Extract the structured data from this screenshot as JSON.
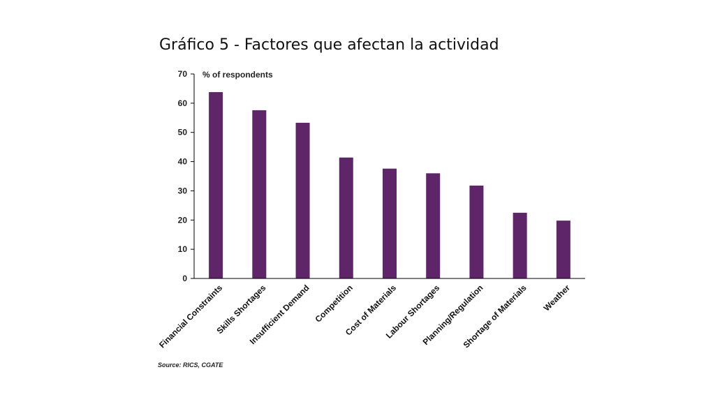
{
  "chart_data": {
    "type": "bar",
    "title": "Gráfico 5 - Factores que afectan la actividad",
    "ylabel": "% of respondents",
    "xlabel": "",
    "ylim": [
      0,
      70
    ],
    "yticks": [
      0,
      10,
      20,
      30,
      40,
      50,
      60,
      70
    ],
    "categories": [
      "Financial Constraints",
      "Skills Shortages",
      "Insufficient Demand",
      "Competition",
      "Cost of Materials",
      "Labour Shortages",
      "Planning/Regulation",
      "Shortage of Materials",
      "Weather"
    ],
    "values": [
      63.8,
      57.6,
      53.3,
      41.4,
      37.6,
      36.0,
      31.8,
      22.5,
      19.8
    ],
    "bar_color": "#5e2669",
    "grid": false,
    "source": "Source: RICS, CGATE"
  }
}
